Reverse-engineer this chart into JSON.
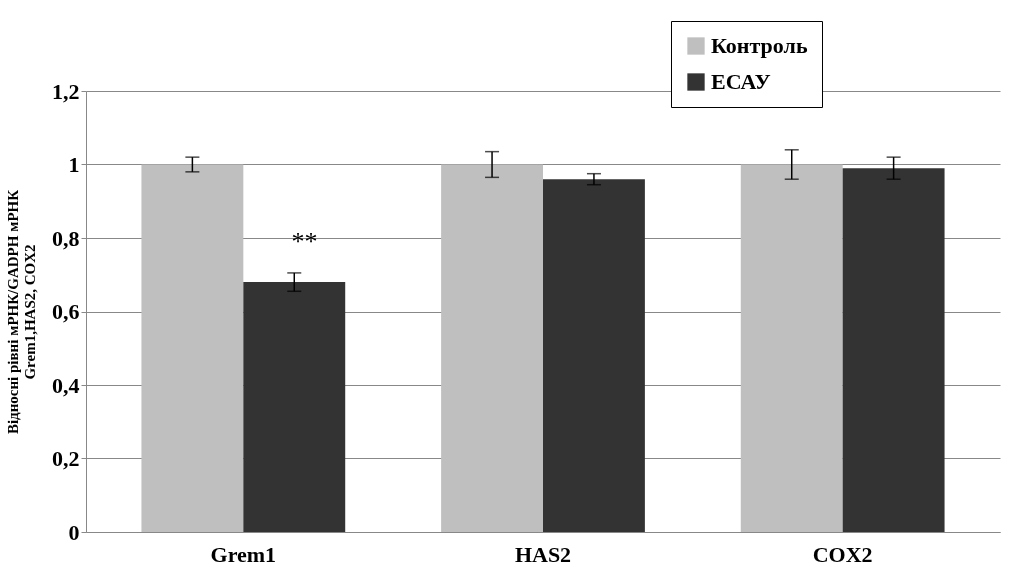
{
  "chart_data": {
    "type": "bar",
    "ylabel": "Відносні рівні мРНК/GADPH мРНК\nGrem1,HAS2, COX2",
    "categories": [
      "Grem1",
      "HAS2",
      "COX2"
    ],
    "series": [
      {
        "name": "Контроль",
        "color": "#bfbfbf",
        "values": [
          1.0,
          1.0,
          1.0
        ],
        "errors": [
          0.02,
          0.035,
          0.04
        ]
      },
      {
        "name": "ЕСАУ",
        "color": "#333333",
        "values": [
          0.68,
          0.96,
          0.99
        ],
        "errors": [
          0.025,
          0.015,
          0.03
        ]
      }
    ],
    "ylim": [
      0,
      1.2
    ],
    "yticks": [
      0,
      {
        "value": 0.2,
        "label": "0,2"
      },
      {
        "value": 0.4,
        "label": "0,4"
      },
      {
        "value": 0.6,
        "label": "0,6"
      },
      {
        "value": 0.8,
        "label": "0,8"
      },
      1,
      {
        "value": 1.2,
        "label": "1,2"
      }
    ],
    "annotations": [
      {
        "text": "**",
        "x": "Grem1",
        "y": 0.79
      }
    ],
    "grid": "y",
    "legend": "top right"
  }
}
